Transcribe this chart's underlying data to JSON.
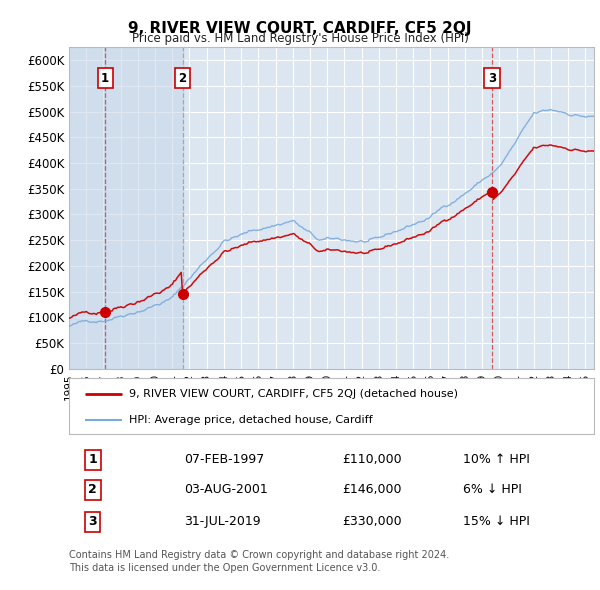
{
  "title": "9, RIVER VIEW COURT, CARDIFF, CF5 2QJ",
  "subtitle": "Price paid vs. HM Land Registry's House Price Index (HPI)",
  "background_color": "#ffffff",
  "plot_bg_color": "#dce6f1",
  "grid_color": "#ffffff",
  "red_line_color": "#cc0000",
  "blue_line_color": "#7aaadd",
  "vline1_color": "#cc4444",
  "vline2_color": "#9999bb",
  "transactions": [
    {
      "num": 1,
      "date": "07-FEB-1997",
      "price": 110000,
      "rel": "10% ↑ HPI",
      "x_year": 1997.1
    },
    {
      "num": 2,
      "date": "03-AUG-2001",
      "price": 146000,
      "rel": "6% ↓ HPI",
      "x_year": 2001.6
    },
    {
      "num": 3,
      "date": "31-JUL-2019",
      "price": 330000,
      "rel": "15% ↓ HPI",
      "x_year": 2019.58
    }
  ],
  "legend_label_red": "9, RIVER VIEW COURT, CARDIFF, CF5 2QJ (detached house)",
  "legend_label_blue": "HPI: Average price, detached house, Cardiff",
  "footer": "Contains HM Land Registry data © Crown copyright and database right 2024.\nThis data is licensed under the Open Government Licence v3.0.",
  "ylim": [
    0,
    625000
  ],
  "yticks": [
    0,
    50000,
    100000,
    150000,
    200000,
    250000,
    300000,
    350000,
    400000,
    450000,
    500000,
    550000,
    600000
  ],
  "xlim_start": 1995.0,
  "xlim_end": 2025.5,
  "span1_color": "#c8d8ea",
  "span2_color": "#c8d8ea",
  "span3_color": "#d0dcea"
}
